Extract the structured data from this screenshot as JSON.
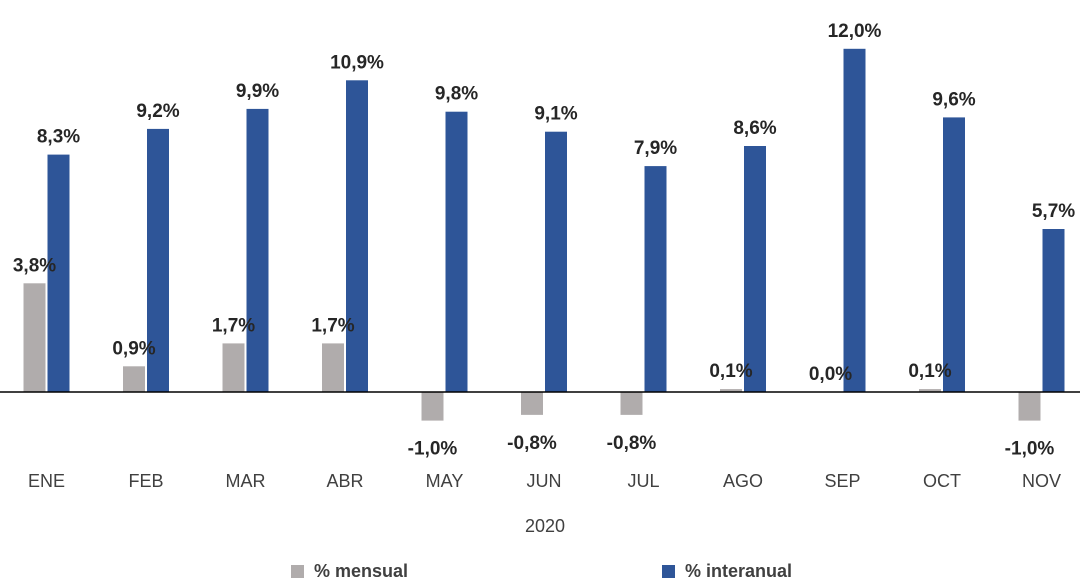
{
  "chart_data": {
    "type": "bar",
    "categories": [
      "ENE",
      "FEB",
      "MAR",
      "ABR",
      "MAY",
      "JUN",
      "JUL",
      "AGO",
      "SEP",
      "OCT",
      "NOV"
    ],
    "xlabel": "2020",
    "series": [
      {
        "name": "% mensual",
        "color": "#b0acac",
        "values": [
          3.8,
          0.9,
          1.7,
          1.7,
          -1.0,
          -0.8,
          -0.8,
          0.1,
          0.0,
          0.1,
          -1.0
        ],
        "labels": [
          "3,8%",
          "0,9%",
          "1,7%",
          "1,7%",
          "-1,0%",
          "-0,8%",
          "-0,8%",
          "0,1%",
          "0,0%",
          "0,1%",
          "-1,0%"
        ]
      },
      {
        "name": "% interanual",
        "color": "#2e5598",
        "values": [
          8.3,
          9.2,
          9.9,
          10.9,
          9.8,
          9.1,
          7.9,
          8.6,
          12.0,
          9.6,
          5.7
        ],
        "labels": [
          "8,3%",
          "9,2%",
          "9,9%",
          "10,9%",
          "9,8%",
          "9,1%",
          "7,9%",
          "8,6%",
          "12,0%",
          "9,6%",
          "5,7%"
        ]
      }
    ],
    "legend_position": "bottom",
    "grid": false
  }
}
